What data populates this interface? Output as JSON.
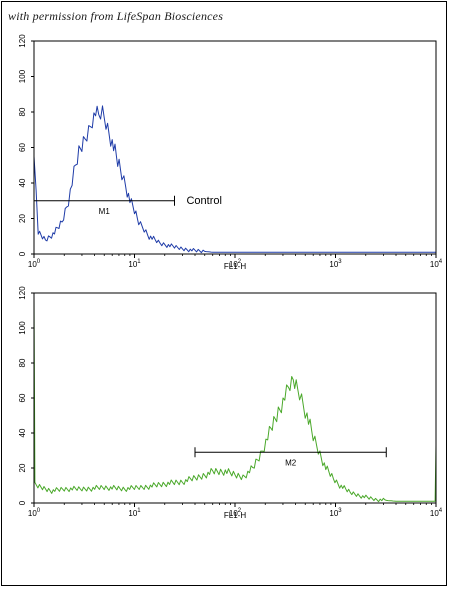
{
  "credit": "with permission from LifeSpan Biosciences",
  "colors": {
    "control": "#1f3ca8",
    "sample": "#4aa82a",
    "axis": "#000000"
  },
  "chart_data": [
    {
      "type": "line",
      "title": "",
      "xlabel": "FL1-H",
      "ylabel": "",
      "xscale": "log",
      "xlim": [
        1,
        10000
      ],
      "ylim": [
        0,
        120
      ],
      "x_ticks": [
        {
          "base": "10",
          "exp": "0"
        },
        {
          "base": "10",
          "exp": "1"
        },
        {
          "base": "10",
          "exp": "2"
        },
        {
          "base": "10",
          "exp": "3"
        },
        {
          "base": "10",
          "exp": "4"
        }
      ],
      "y_ticks": [
        "0",
        "20",
        "40",
        "60",
        "80",
        "100",
        "120"
      ],
      "series": [
        {
          "name": "",
          "color": "#1f3ca8",
          "points": [
            [
              1,
              60
            ],
            [
              1.05,
              35
            ],
            [
              1.1,
              12
            ],
            [
              1.3,
              8
            ],
            [
              1.6,
              12
            ],
            [
              1.9,
              18
            ],
            [
              2.2,
              30
            ],
            [
              2.5,
              45
            ],
            [
              2.8,
              57
            ],
            [
              3.1,
              63
            ],
            [
              3.5,
              70
            ],
            [
              3.8,
              76
            ],
            [
              4.1,
              80
            ],
            [
              4.4,
              78
            ],
            [
              4.8,
              80
            ],
            [
              5.2,
              74
            ],
            [
              5.6,
              68
            ],
            [
              6.2,
              60
            ],
            [
              6.8,
              52
            ],
            [
              7.5,
              45
            ],
            [
              8.2,
              38
            ],
            [
              9,
              30
            ],
            [
              10,
              24
            ],
            [
              11,
              18
            ],
            [
              12.5,
              14
            ],
            [
              14,
              10
            ],
            [
              16,
              8
            ],
            [
              18,
              6
            ],
            [
              21,
              5
            ],
            [
              25,
              4
            ],
            [
              30,
              3
            ],
            [
              40,
              2
            ],
            [
              60,
              1
            ],
            [
              100,
              1
            ],
            [
              300,
              1
            ],
            [
              1000,
              1
            ],
            [
              4000,
              1
            ],
            [
              10000,
              1
            ]
          ]
        }
      ],
      "gate": {
        "label": "M1",
        "x_start": 1,
        "x_end": 25,
        "y": 30
      },
      "annotation": "Control"
    },
    {
      "type": "line",
      "title": "",
      "xlabel": "FL1-H",
      "ylabel": "",
      "xscale": "log",
      "xlim": [
        1,
        10000
      ],
      "ylim": [
        0,
        120
      ],
      "x_ticks": [
        {
          "base": "10",
          "exp": "0"
        },
        {
          "base": "10",
          "exp": "1"
        },
        {
          "base": "10",
          "exp": "2"
        },
        {
          "base": "10",
          "exp": "3"
        },
        {
          "base": "10",
          "exp": "4"
        }
      ],
      "y_ticks": [
        "0",
        "20",
        "40",
        "60",
        "80",
        "100",
        "120"
      ],
      "series": [
        {
          "name": "",
          "color": "#4aa82a",
          "points": [
            [
              1,
              120
            ],
            [
              1.02,
              10
            ],
            [
              1.5,
              7
            ],
            [
              2,
              8
            ],
            [
              3,
              8
            ],
            [
              5,
              9
            ],
            [
              8,
              8
            ],
            [
              12,
              9
            ],
            [
              20,
              11
            ],
            [
              30,
              12
            ],
            [
              45,
              15
            ],
            [
              60,
              18
            ],
            [
              80,
              18
            ],
            [
              100,
              16
            ],
            [
              120,
              15
            ],
            [
              150,
              20
            ],
            [
              180,
              28
            ],
            [
              220,
              40
            ],
            [
              260,
              50
            ],
            [
              300,
              58
            ],
            [
              340,
              65
            ],
            [
              380,
              70
            ],
            [
              420,
              66
            ],
            [
              460,
              60
            ],
            [
              520,
              50
            ],
            [
              600,
              38
            ],
            [
              700,
              28
            ],
            [
              800,
              20
            ],
            [
              950,
              14
            ],
            [
              1100,
              10
            ],
            [
              1400,
              6
            ],
            [
              1800,
              4
            ],
            [
              2500,
              2
            ],
            [
              4000,
              1
            ],
            [
              7000,
              1
            ],
            [
              9800,
              1
            ],
            [
              10000,
              33
            ]
          ]
        }
      ],
      "gate": {
        "label": "M2",
        "x_start": 40,
        "x_end": 3200,
        "y": 29
      }
    }
  ]
}
